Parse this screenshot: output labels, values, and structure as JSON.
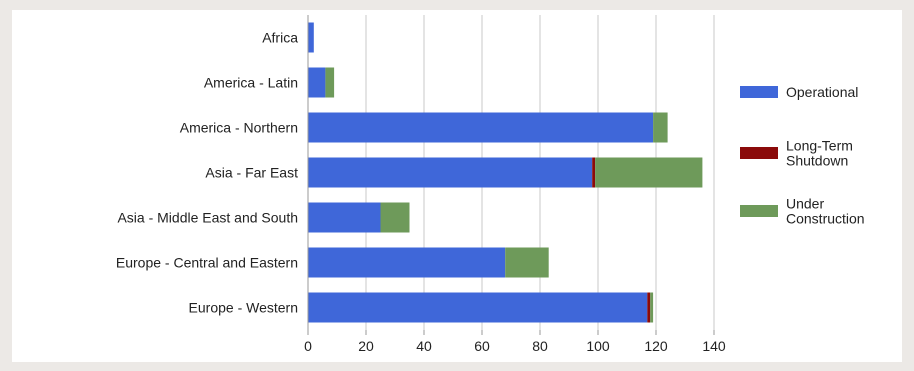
{
  "chart_data": {
    "type": "bar",
    "orientation": "horizontal",
    "stacked": true,
    "title": "",
    "xlabel": "",
    "ylabel": "",
    "categories": [
      "Africa",
      "America - Latin",
      "America - Northern",
      "Asia - Far East",
      "Asia - Middle East and South",
      "Europe - Central and Eastern",
      "Europe - Western"
    ],
    "series": [
      {
        "name": "Operational",
        "color": "#3f67d9",
        "values": [
          2,
          6,
          119,
          98,
          25,
          68,
          117
        ]
      },
      {
        "name": "Long-Term Shutdown",
        "color": "#8b0a0a",
        "values": [
          0,
          0,
          0,
          1,
          0,
          0,
          1
        ]
      },
      {
        "name": "Under Construction",
        "color": "#6e9a5a",
        "values": [
          0,
          3,
          5,
          37,
          10,
          15,
          1
        ]
      }
    ],
    "xlim": [
      0,
      140
    ],
    "xticks": [
      0,
      20,
      40,
      60,
      80,
      100,
      120,
      140
    ],
    "grid": "vertical",
    "legend_position": "right"
  },
  "legend": {
    "items": [
      {
        "lines": [
          "Operational"
        ],
        "color": "#3f67d9"
      },
      {
        "lines": [
          "Long-Term",
          "Shutdown"
        ],
        "color": "#8b0a0a"
      },
      {
        "lines": [
          "Under",
          "Construction"
        ],
        "color": "#6e9a5a"
      }
    ]
  }
}
